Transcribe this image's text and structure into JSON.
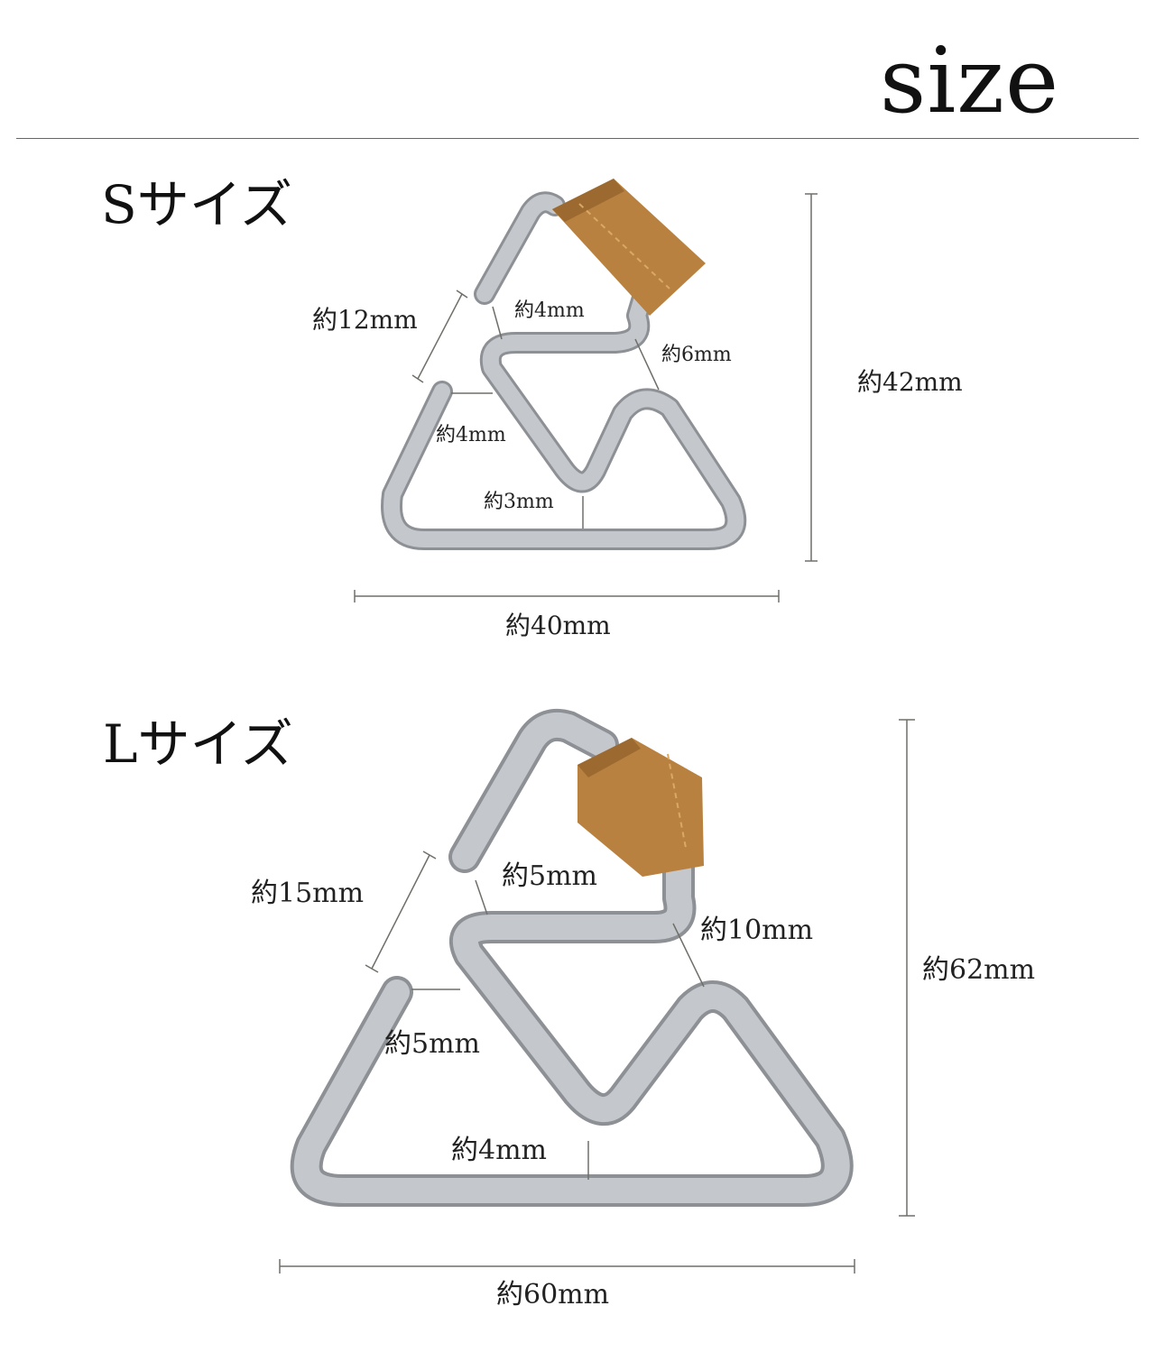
{
  "page": {
    "title": "size"
  },
  "small": {
    "label": "Sサイズ",
    "dims": {
      "opening": "約12mm",
      "top_gap": "約4mm",
      "diagonal": "約6mm",
      "left_gap": "約4mm",
      "bottom_gap": "約3mm",
      "height": "約42mm",
      "width": "約40mm"
    }
  },
  "large": {
    "label": "Lサイズ",
    "dims": {
      "opening": "約15mm",
      "top_gap": "約5mm",
      "diagonal": "約10mm",
      "left_gap": "約5mm",
      "bottom_gap": "約4mm",
      "height": "約62mm",
      "width": "約60mm"
    }
  },
  "colors": {
    "metal": "#b9bcc0",
    "metal_edge": "#8d9095",
    "leather": "#b9813f",
    "line": "#6f6f6a"
  }
}
